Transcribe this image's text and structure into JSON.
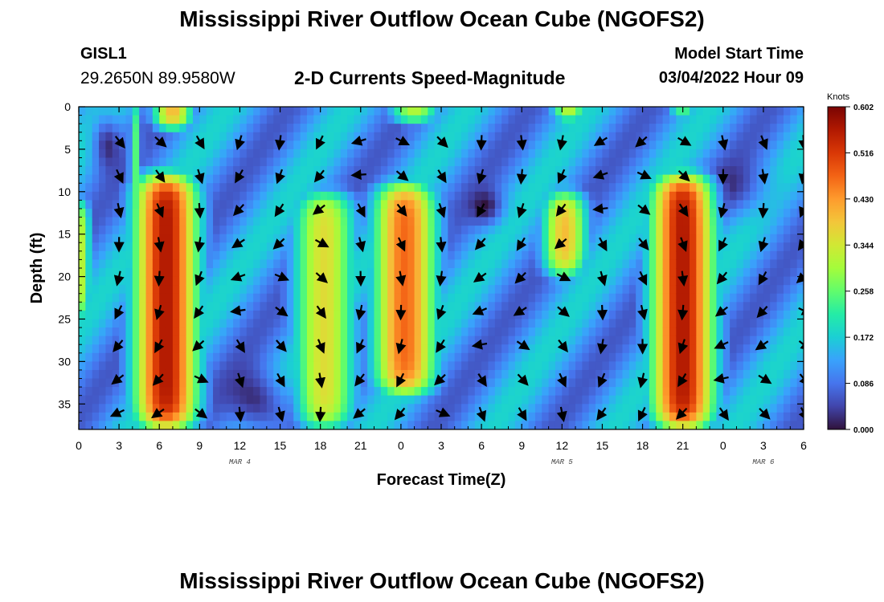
{
  "page": {
    "title": "Mississippi River Outflow Ocean Cube (NGOFS2)",
    "station": "GISL1",
    "coords": "29.2650N  89.9580W",
    "subtitle": "2-D Currents Speed-Magnitude",
    "model_start_label": "Model Start Time",
    "model_start_value": "03/04/2022 Hour 09",
    "title_repeat": "Mississippi River Outflow Ocean Cube (NGOFS2)"
  },
  "chart_data": {
    "type": "heatmap",
    "title": "2-D Currents Speed-Magnitude",
    "xlabel": "Forecast Time(Z)",
    "ylabel": "Depth (ft)",
    "x_range_hours": [
      0,
      54
    ],
    "y_range_ft": [
      0,
      38
    ],
    "x_ticks": [
      "0",
      "3",
      "6",
      "9",
      "12",
      "15",
      "18",
      "21",
      "0",
      "3",
      "6",
      "9",
      "12",
      "15",
      "18",
      "21",
      "0",
      "3",
      "6"
    ],
    "y_ticks": [
      "0",
      "5",
      "10",
      "15",
      "20",
      "25",
      "30",
      "35"
    ],
    "y_tick_values": [
      0,
      5,
      10,
      15,
      20,
      25,
      30,
      35
    ],
    "date_labels": [
      {
        "text": "MAR 4",
        "hour": 12
      },
      {
        "text": "MAR 5",
        "hour": 36
      },
      {
        "text": "MAR 6",
        "hour": 51
      }
    ],
    "colorbar": {
      "unit": "Knots",
      "min": 0.0,
      "max": 0.602,
      "ticks": [
        "0.000",
        "0.086",
        "0.172",
        "0.258",
        "0.344",
        "0.430",
        "0.516",
        "0.602"
      ],
      "colors": [
        "#30123b",
        "#4145ab",
        "#4675ed",
        "#39a2fc",
        "#1bcfd4",
        "#24eca6",
        "#61fc6c",
        "#a4fc3b",
        "#d1e834",
        "#f3c63a",
        "#fe9b2d",
        "#f36315",
        "#d93806",
        "#b11901",
        "#7a0403"
      ]
    },
    "strong_current_bands": [
      {
        "center_hour": 6.5,
        "depth_ft": [
          8,
          38
        ],
        "speed_knots": 0.56
      },
      {
        "center_hour": 18.3,
        "depth_ft": [
          10,
          38
        ],
        "speed_knots": 0.36
      },
      {
        "center_hour": 24.3,
        "depth_ft": [
          9,
          34
        ],
        "speed_knots": 0.47
      },
      {
        "center_hour": 36.2,
        "depth_ft": [
          10,
          20
        ],
        "speed_knots": 0.4
      },
      {
        "center_hour": 45.0,
        "depth_ft": [
          8,
          38
        ],
        "speed_knots": 0.56
      }
    ],
    "arrow_rows_depth_ft": [
      4,
      8,
      12,
      16,
      20,
      24,
      28,
      32,
      36
    ],
    "arrow_cols_hour": [
      3,
      6,
      9,
      12,
      15,
      18,
      21,
      24,
      27,
      30,
      33,
      36,
      39,
      42,
      45,
      48,
      51,
      54
    ]
  }
}
